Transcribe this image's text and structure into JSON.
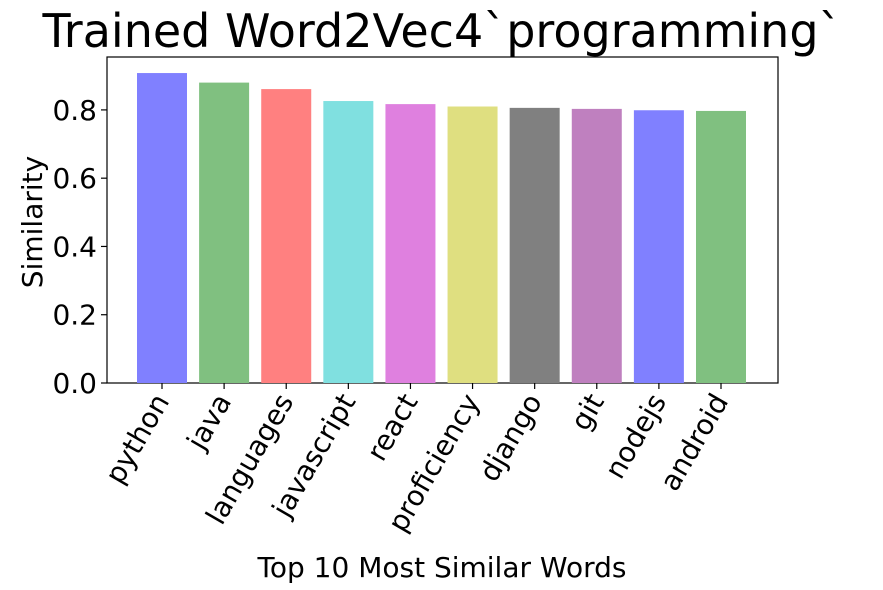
{
  "chart_data": {
    "type": "bar",
    "title": "Trained Word2Vec4`programming`",
    "xlabel": "Top 10 Most Similar Words",
    "ylabel": "Similarity",
    "categories": [
      "python",
      "java",
      "languages",
      "javascript",
      "react",
      "proficiency",
      "django",
      "git",
      "nodejs",
      "android"
    ],
    "values": [
      0.908,
      0.88,
      0.861,
      0.826,
      0.817,
      0.81,
      0.806,
      0.803,
      0.799,
      0.797
    ],
    "colors": [
      "#8080ff",
      "#80c080",
      "#ff8080",
      "#80e0e0",
      "#df80df",
      "#dfdf80",
      "#808080",
      "#bf80bf",
      "#8080ff",
      "#80c080"
    ],
    "ylim": [
      0,
      0.955
    ],
    "yticks": [
      0.0,
      0.2,
      0.4,
      0.6,
      0.8
    ],
    "ytick_labels": [
      "0.0",
      "0.2",
      "0.4",
      "0.6",
      "0.8"
    ],
    "grid": false,
    "legend": "none"
  }
}
